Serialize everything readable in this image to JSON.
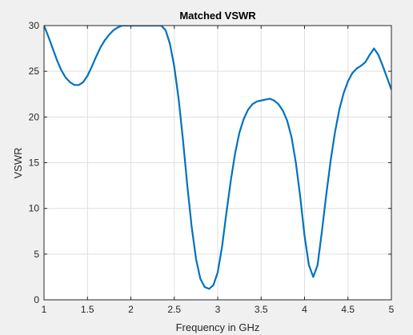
{
  "chart_data": {
    "type": "line",
    "title": "Matched VSWR",
    "xlabel": "Frequency in GHz",
    "ylabel": "VSWR",
    "xlim": [
      1,
      5
    ],
    "ylim": [
      0,
      30
    ],
    "xticks": [
      1,
      1.5,
      2,
      2.5,
      3,
      3.5,
      4,
      4.5,
      5
    ],
    "xtick_labels": [
      "1",
      "1.5",
      "2",
      "2.5",
      "3",
      "3.5",
      "4",
      "4.5",
      "5"
    ],
    "yticks": [
      0,
      5,
      10,
      15,
      20,
      25,
      30
    ],
    "ytick_labels": [
      "0",
      "5",
      "10",
      "15",
      "20",
      "25",
      "30"
    ],
    "grid": true,
    "line_color": "#0072bd",
    "series": [
      {
        "x": [
          1.0,
          1.05,
          1.1,
          1.15,
          1.2,
          1.25,
          1.3,
          1.35,
          1.4,
          1.45,
          1.5,
          1.55,
          1.6,
          1.65,
          1.7,
          1.75,
          1.8,
          1.85,
          1.9,
          1.95,
          2.0,
          2.05,
          2.1,
          2.15,
          2.2,
          2.25,
          2.3,
          2.35,
          2.4,
          2.45,
          2.5,
          2.55,
          2.6,
          2.65,
          2.7,
          2.75,
          2.8,
          2.85,
          2.9,
          2.95,
          3.0,
          3.05,
          3.1,
          3.15,
          3.2,
          3.25,
          3.3,
          3.35,
          3.4,
          3.45,
          3.5,
          3.55,
          3.6,
          3.65,
          3.7,
          3.75,
          3.8,
          3.85,
          3.9,
          3.95,
          4.0,
          4.05,
          4.1,
          4.15,
          4.2,
          4.25,
          4.3,
          4.35,
          4.4,
          4.45,
          4.5,
          4.55,
          4.6,
          4.65,
          4.7,
          4.75,
          4.8,
          4.85,
          4.9,
          4.95,
          5.0
        ],
        "y": [
          30.0,
          28.8,
          27.5,
          26.2,
          25.1,
          24.3,
          23.8,
          23.5,
          23.5,
          23.8,
          24.5,
          25.5,
          26.6,
          27.6,
          28.4,
          29.0,
          29.5,
          29.8,
          30.0,
          30.0,
          30.0,
          30.0,
          30.0,
          30.0,
          30.0,
          30.0,
          30.0,
          30.0,
          29.5,
          28.0,
          25.5,
          22.0,
          17.5,
          12.5,
          8.0,
          4.5,
          2.3,
          1.4,
          1.2,
          1.6,
          3.0,
          5.8,
          9.5,
          13.0,
          16.0,
          18.3,
          19.8,
          20.8,
          21.4,
          21.7,
          21.8,
          21.9,
          22.0,
          21.8,
          21.4,
          20.7,
          19.6,
          17.8,
          15.0,
          11.3,
          7.0,
          3.8,
          2.5,
          3.8,
          7.5,
          11.5,
          15.2,
          18.3,
          20.8,
          22.6,
          23.9,
          24.8,
          25.3,
          25.6,
          26.0,
          26.8,
          27.5,
          26.8,
          25.6,
          24.3,
          23.0
        ]
      }
    ]
  }
}
